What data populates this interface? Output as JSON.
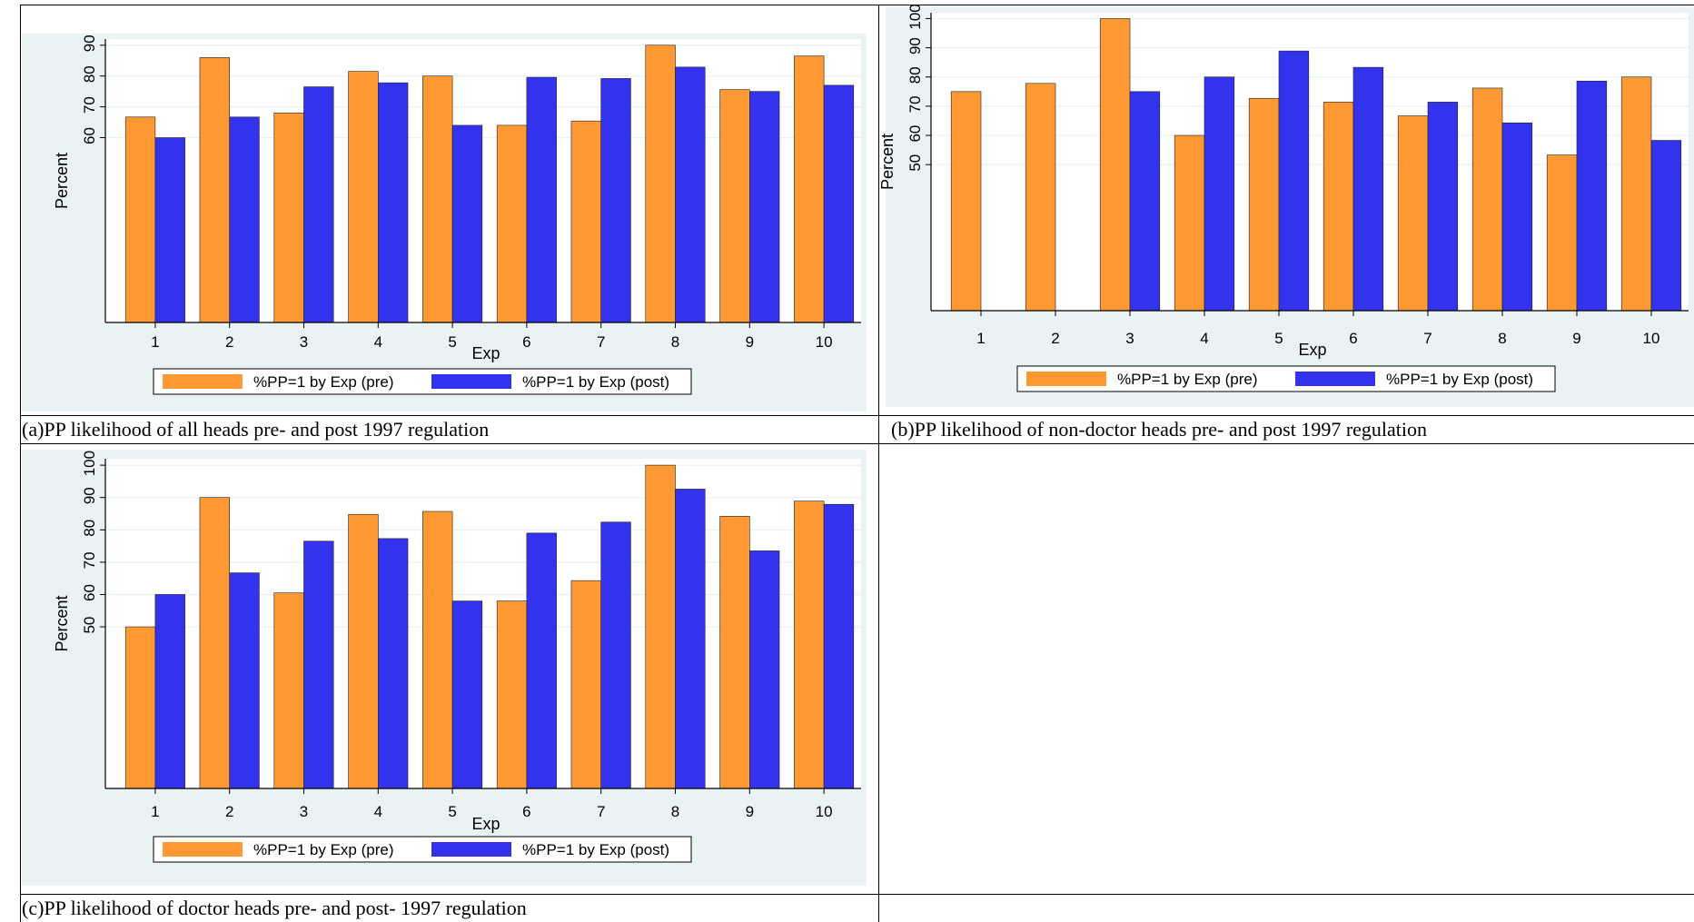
{
  "colors": {
    "pre": "#ff9933",
    "post": "#3333ee",
    "plot_bg": "#eaf2f3",
    "inner_bg": "#ffffff"
  },
  "captions": {
    "a": "(a)PP likelihood of all heads pre- and post 1997 regulation",
    "b": "(b)PP likelihood of non-doctor heads pre- and post 1997 regulation",
    "c": "(c)PP likelihood of doctor heads pre- and post- 1997 regulation"
  },
  "chart_data": [
    {
      "panel": "a",
      "type": "bar",
      "xlabel": "Exp",
      "ylabel": "Percent",
      "categories": [
        "1",
        "2",
        "3",
        "4",
        "5",
        "6",
        "7",
        "8",
        "9",
        "10"
      ],
      "yticks": [
        60,
        70,
        80,
        90
      ],
      "ylim": [
        0,
        92
      ],
      "series": [
        {
          "name": "%PP=1 by Exp (pre)",
          "values": [
            66.7,
            86,
            68,
            81.5,
            80,
            64,
            65.4,
            90,
            75.6,
            86.5
          ]
        },
        {
          "name": "%PP=1 by Exp (post)",
          "values": [
            60,
            66.7,
            76.5,
            77.8,
            64,
            79.6,
            79.2,
            82.9,
            75,
            77
          ]
        }
      ],
      "legend": "bottom"
    },
    {
      "panel": "b",
      "type": "bar",
      "xlabel": "Exp",
      "ylabel": "Percent",
      "categories": [
        "1",
        "2",
        "3",
        "4",
        "5",
        "6",
        "7",
        "8",
        "9",
        "10"
      ],
      "yticks": [
        50,
        60,
        70,
        80,
        90,
        100
      ],
      "ylim": [
        0,
        102
      ],
      "series": [
        {
          "name": "%PP=1 by Exp (pre)",
          "values": [
            75,
            77.8,
            100,
            60,
            72.7,
            71.4,
            66.7,
            76.2,
            53.3,
            80
          ]
        },
        {
          "name": "%PP=1 by Exp (post)",
          "values": [
            null,
            null,
            75,
            80,
            88.9,
            83.3,
            71.4,
            64.3,
            78.6,
            58.3
          ]
        }
      ],
      "legend": "bottom"
    },
    {
      "panel": "c",
      "type": "bar",
      "xlabel": "Exp",
      "ylabel": "Percent",
      "categories": [
        "1",
        "2",
        "3",
        "4",
        "5",
        "6",
        "7",
        "8",
        "9",
        "10"
      ],
      "yticks": [
        50,
        60,
        70,
        80,
        90,
        100
      ],
      "ylim": [
        0,
        102
      ],
      "series": [
        {
          "name": "%PP=1 by Exp (pre)",
          "values": [
            50,
            90,
            60.5,
            84.8,
            85.7,
            58,
            64.3,
            100,
            84.2,
            88.9
          ]
        },
        {
          "name": "%PP=1 by Exp (post)",
          "values": [
            60,
            66.7,
            76.5,
            77.3,
            58,
            79,
            82.4,
            92.6,
            73.5,
            87.9
          ]
        }
      ],
      "legend": "bottom"
    }
  ]
}
